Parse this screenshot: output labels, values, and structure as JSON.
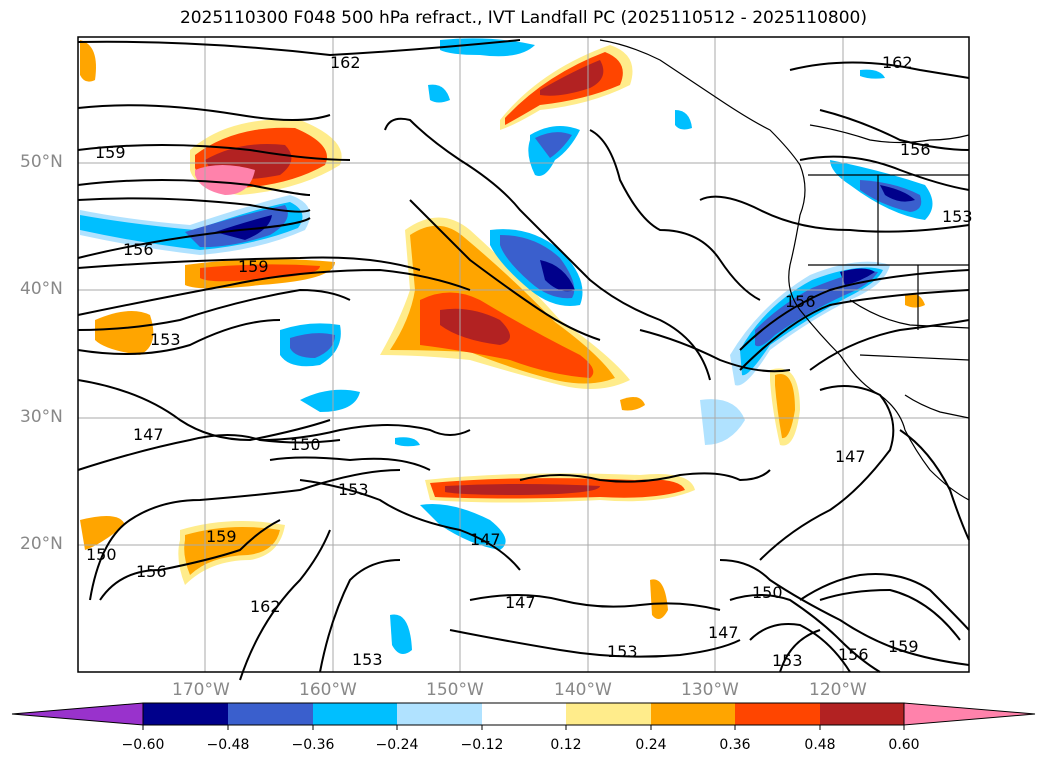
{
  "title": "2025110300 F048 500 hPa refract., IVT Landfall PC (2025110512 - 2025110800)",
  "map": {
    "lon_labels": [
      "170°W",
      "160°W",
      "150°W",
      "140°W",
      "130°W",
      "120°W"
    ],
    "lat_labels": [
      "50°N",
      "40°N",
      "30°N",
      "20°N"
    ],
    "contour_labels": [
      "162",
      "159",
      "156",
      "159",
      "153",
      "147",
      "150",
      "153",
      "159",
      "156",
      "150",
      "162",
      "147",
      "156",
      "153",
      "147",
      "153",
      "147",
      "150",
      "147",
      "153",
      "156",
      "159",
      "162",
      "156",
      "153"
    ],
    "colors": {
      "strong_negative": "#00008b",
      "negative": "#3a5fcd",
      "moderate_negative": "#00bfff",
      "weak_negative": "#b0e2ff",
      "weak_positive": "#ffec8b",
      "moderate_positive": "#ffa500",
      "positive": "#ff4500",
      "strong_positive": "#b22222",
      "extreme_positive": "#ff82ab",
      "extreme_negative": "#9932cc"
    }
  },
  "colorbar": {
    "ticks": [
      "−0.60",
      "−0.48",
      "−0.36",
      "−0.24",
      "−0.12",
      "0.12",
      "0.24",
      "0.36",
      "0.48",
      "0.60"
    ],
    "colors": [
      "#9932cc",
      "#00008b",
      "#3a5fcd",
      "#00bfff",
      "#b0e2ff",
      "#ffffff",
      "#ffec8b",
      "#ffa500",
      "#ff4500",
      "#b22222",
      "#ff82ab"
    ]
  }
}
